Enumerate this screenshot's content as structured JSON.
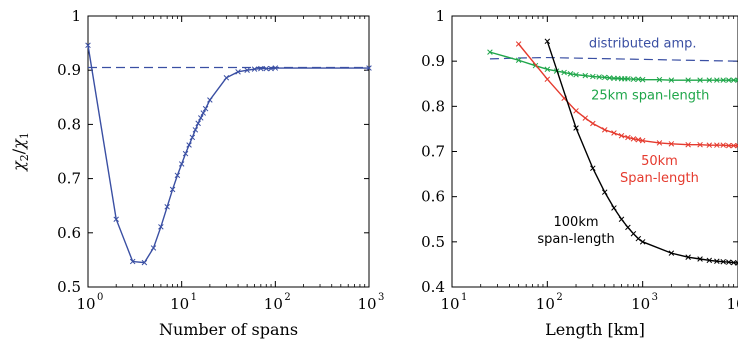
{
  "chart_data": [
    {
      "type": "line",
      "xscale": "log",
      "xlim": [
        1,
        1000
      ],
      "ylim": [
        0.5,
        1.0
      ],
      "xticks": [
        {
          "base": "10",
          "exp": "0"
        },
        {
          "base": "10",
          "exp": "1"
        },
        {
          "base": "10",
          "exp": "2"
        },
        {
          "base": "10",
          "exp": "3"
        }
      ],
      "yticks": [
        "0.5",
        "0.6",
        "0.7",
        "0.8",
        "0.9",
        "1"
      ],
      "xlabel": "Number of spans",
      "ylabel_base": "χ",
      "ylabel_sub_num": "2",
      "ylabel_sub_den": "1",
      "series": [
        {
          "name": "",
          "color": "#3a4fa3",
          "style": "solid",
          "markers": "x",
          "x": [
            1,
            2,
            3,
            4,
            5,
            6,
            7,
            8,
            9,
            10,
            11,
            12,
            13,
            14,
            15,
            16,
            17,
            18,
            20,
            30,
            40,
            50,
            60,
            70,
            80,
            90,
            100,
            1000
          ],
          "y": [
            0.946,
            0.625,
            0.547,
            0.545,
            0.572,
            0.611,
            0.648,
            0.68,
            0.706,
            0.727,
            0.746,
            0.762,
            0.776,
            0.79,
            0.802,
            0.812,
            0.821,
            0.829,
            0.845,
            0.886,
            0.897,
            0.9,
            0.902,
            0.903,
            0.903,
            0.903,
            0.904,
            0.904
          ]
        },
        {
          "name": "",
          "color": "#3a4fa3",
          "style": "dashed",
          "markers": "none",
          "x": [
            1,
            1000
          ],
          "y": [
            0.905,
            0.905
          ]
        }
      ]
    },
    {
      "type": "line",
      "xscale": "log",
      "xlim": [
        10,
        10000
      ],
      "ylim": [
        0.4,
        1.0
      ],
      "xticks": [
        {
          "base": "10",
          "exp": "1"
        },
        {
          "base": "10",
          "exp": "2"
        },
        {
          "base": "10",
          "exp": "3"
        },
        {
          "base": "10",
          "exp": "4"
        }
      ],
      "yticks": [
        "0.4",
        "0.5",
        "0.6",
        "0.7",
        "0.8",
        "0.9",
        "1"
      ],
      "xlabel": "Length [km]",
      "series": [
        {
          "name": "distributed amp.",
          "color": "#3a4fa3",
          "style": "dashed",
          "markers": "none",
          "x": [
            25,
            50,
            100,
            300,
            1000,
            3000,
            10000
          ],
          "y": [
            0.905,
            0.907,
            0.908,
            0.906,
            0.904,
            0.902,
            0.9
          ]
        },
        {
          "name": "25km span-length",
          "color": "#1fa64a",
          "style": "solid",
          "markers": "x",
          "x": [
            25,
            50,
            75,
            100,
            125,
            150,
            175,
            200,
            250,
            300,
            350,
            400,
            450,
            500,
            550,
            600,
            650,
            700,
            800,
            900,
            1000,
            1500,
            2000,
            3000,
            4000,
            5000,
            6000,
            7000,
            8000,
            9000,
            10000
          ],
          "y": [
            0.92,
            0.902,
            0.89,
            0.882,
            0.878,
            0.875,
            0.872,
            0.87,
            0.868,
            0.866,
            0.865,
            0.864,
            0.863,
            0.862,
            0.862,
            0.861,
            0.861,
            0.861,
            0.86,
            0.86,
            0.859,
            0.859,
            0.858,
            0.858,
            0.858,
            0.858,
            0.858,
            0.858,
            0.858,
            0.858,
            0.858
          ]
        },
        {
          "name": "50km Span-length",
          "color": "#e53a2e",
          "style": "solid",
          "markers": "x",
          "x": [
            50,
            100,
            150,
            200,
            250,
            300,
            400,
            500,
            600,
            700,
            800,
            900,
            1000,
            1500,
            2000,
            3000,
            4000,
            5000,
            6000,
            7000,
            8000,
            9000,
            10000
          ],
          "y": [
            0.938,
            0.86,
            0.818,
            0.79,
            0.774,
            0.762,
            0.748,
            0.741,
            0.735,
            0.731,
            0.728,
            0.726,
            0.724,
            0.719,
            0.717,
            0.715,
            0.715,
            0.714,
            0.714,
            0.714,
            0.713,
            0.713,
            0.713
          ]
        },
        {
          "name": "100km span-length",
          "color": "#000000",
          "style": "solid",
          "markers": "x",
          "x": [
            100,
            200,
            300,
            400,
            500,
            600,
            700,
            800,
            900,
            1000,
            2000,
            3000,
            4000,
            5000,
            6000,
            7000,
            8000,
            9000,
            10000
          ],
          "y": [
            0.944,
            0.752,
            0.663,
            0.61,
            0.575,
            0.55,
            0.532,
            0.518,
            0.507,
            0.5,
            0.475,
            0.466,
            0.462,
            0.459,
            0.457,
            0.456,
            0.455,
            0.454,
            0.453
          ]
        }
      ],
      "annotations": [
        {
          "lines": [
            "distributed amp."
          ],
          "color": "#3a4fa3",
          "x": 1000,
          "y": 0.93
        },
        {
          "lines": [
            "25km span-length"
          ],
          "color": "#1fa64a",
          "x": 1200,
          "y": 0.815
        },
        {
          "lines": [
            "50km",
            "Span-length"
          ],
          "color": "#e53a2e",
          "x": 1500,
          "y": 0.67
        },
        {
          "lines": [
            "100km",
            "span-length"
          ],
          "color": "#000000",
          "x": 200,
          "y": 0.535
        }
      ]
    }
  ]
}
